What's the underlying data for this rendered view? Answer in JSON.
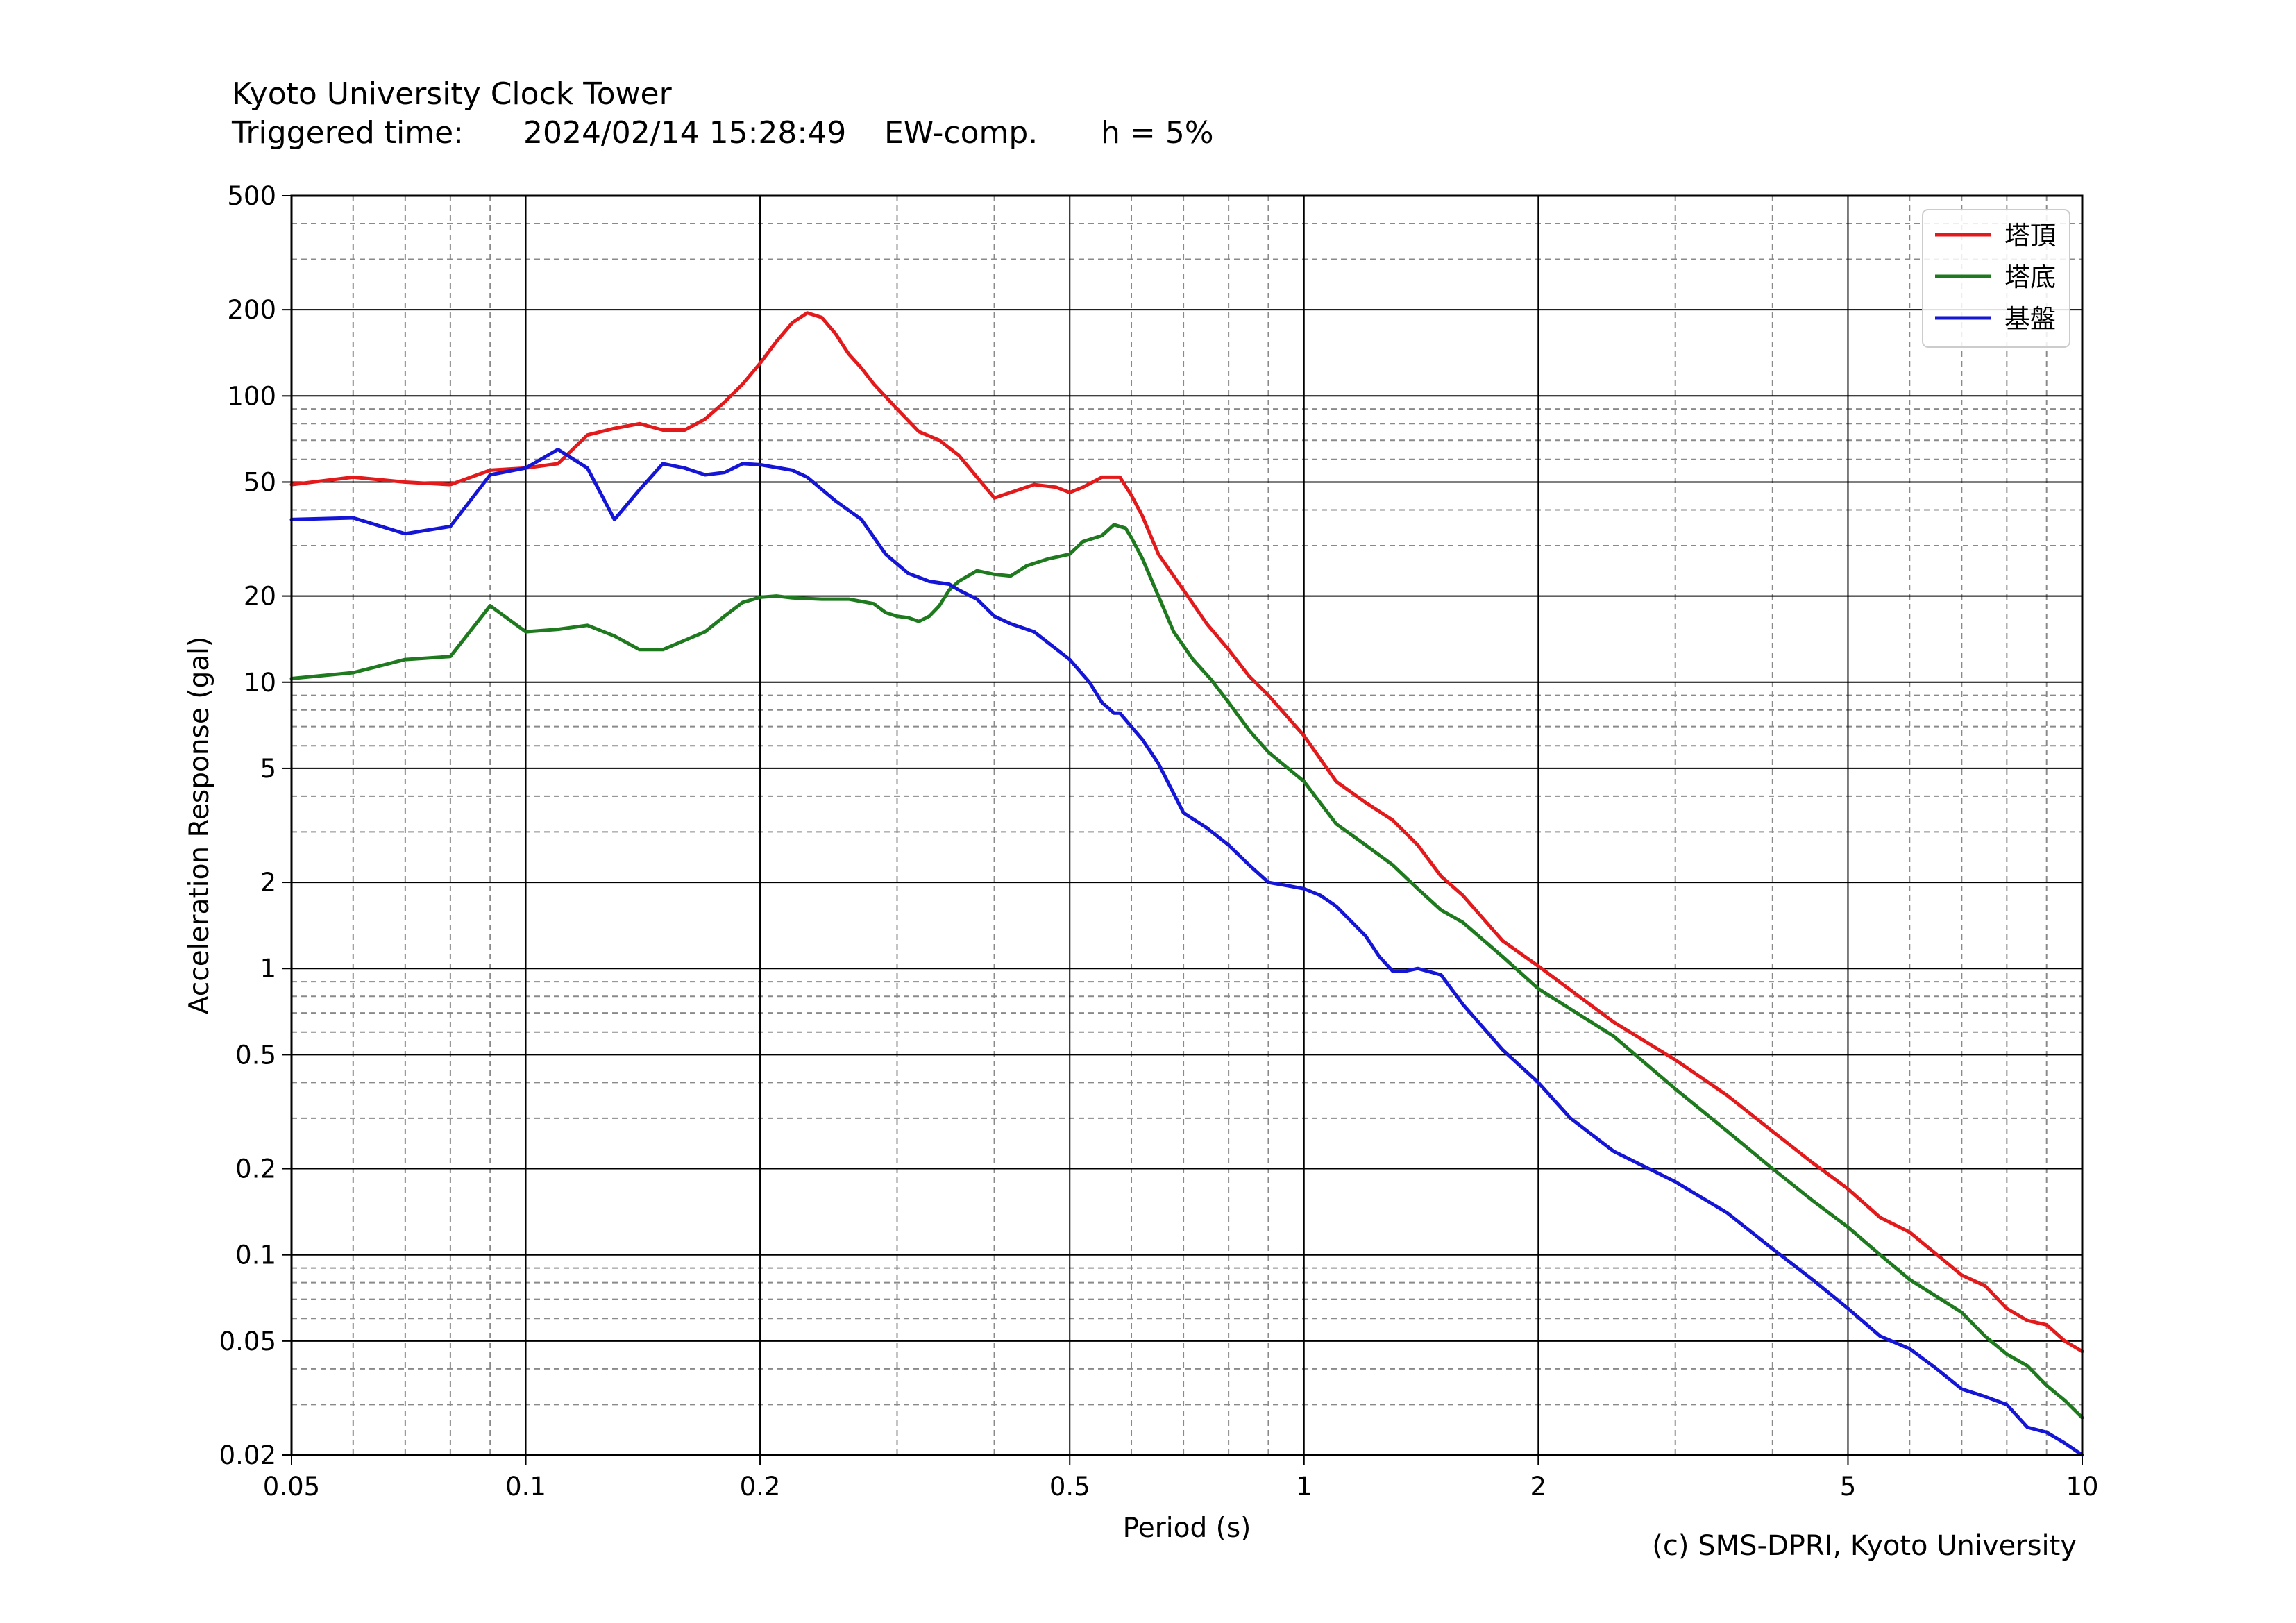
{
  "header": {
    "line1": "Kyoto University Clock Tower",
    "triggered_label": "Triggered time:",
    "triggered_time": "2024/02/14 15:28:49",
    "component": "EW-comp.",
    "damping": "h = 5%"
  },
  "copyright": "(c) SMS-DPRI, Kyoto University",
  "chart_data": {
    "type": "line",
    "xlabel": "Period (s)",
    "ylabel": "Acceleration Response (gal)",
    "xscale": "log",
    "yscale": "log",
    "xlim": [
      0.05,
      10
    ],
    "ylim": [
      0.02,
      500
    ],
    "grid": true,
    "legend_position": "top-right",
    "x_ticks": [
      {
        "value": 0.05,
        "label": "0.05"
      },
      {
        "value": 0.1,
        "label": "0.1"
      },
      {
        "value": 0.2,
        "label": "0.2"
      },
      {
        "value": 0.5,
        "label": "0.5"
      },
      {
        "value": 1,
        "label": "1"
      },
      {
        "value": 2,
        "label": "2"
      },
      {
        "value": 5,
        "label": "5"
      },
      {
        "value": 10,
        "label": "10"
      }
    ],
    "y_ticks": [
      {
        "value": 0.02,
        "label": "0.02"
      },
      {
        "value": 0.05,
        "label": "0.05"
      },
      {
        "value": 0.1,
        "label": "0.1"
      },
      {
        "value": 0.2,
        "label": "0.2"
      },
      {
        "value": 0.5,
        "label": "0.5"
      },
      {
        "value": 1,
        "label": "1"
      },
      {
        "value": 2,
        "label": "2"
      },
      {
        "value": 5,
        "label": "5"
      },
      {
        "value": 10,
        "label": "10"
      },
      {
        "value": 20,
        "label": "20"
      },
      {
        "value": 50,
        "label": "50"
      },
      {
        "value": 100,
        "label": "100"
      },
      {
        "value": 200,
        "label": "200"
      },
      {
        "value": 500,
        "label": "500"
      }
    ],
    "series": [
      {
        "name": "塔頂",
        "color": "#e31a1c",
        "points": [
          [
            0.05,
            49
          ],
          [
            0.06,
            52
          ],
          [
            0.07,
            50
          ],
          [
            0.08,
            49
          ],
          [
            0.09,
            55
          ],
          [
            0.1,
            56
          ],
          [
            0.11,
            58
          ],
          [
            0.12,
            73
          ],
          [
            0.13,
            77
          ],
          [
            0.14,
            80
          ],
          [
            0.15,
            76
          ],
          [
            0.16,
            76
          ],
          [
            0.17,
            83
          ],
          [
            0.18,
            95
          ],
          [
            0.19,
            110
          ],
          [
            0.2,
            130
          ],
          [
            0.21,
            155
          ],
          [
            0.22,
            180
          ],
          [
            0.23,
            195
          ],
          [
            0.24,
            188
          ],
          [
            0.25,
            165
          ],
          [
            0.26,
            140
          ],
          [
            0.27,
            125
          ],
          [
            0.28,
            110
          ],
          [
            0.3,
            90
          ],
          [
            0.32,
            75
          ],
          [
            0.34,
            70
          ],
          [
            0.36,
            62
          ],
          [
            0.38,
            52
          ],
          [
            0.4,
            44
          ],
          [
            0.42,
            46
          ],
          [
            0.45,
            49
          ],
          [
            0.48,
            48
          ],
          [
            0.5,
            46
          ],
          [
            0.52,
            48
          ],
          [
            0.55,
            52
          ],
          [
            0.58,
            52
          ],
          [
            0.6,
            45
          ],
          [
            0.62,
            38
          ],
          [
            0.65,
            28
          ],
          [
            0.7,
            21
          ],
          [
            0.75,
            16
          ],
          [
            0.8,
            13
          ],
          [
            0.85,
            10.5
          ],
          [
            0.9,
            9
          ],
          [
            1,
            6.5
          ],
          [
            1.1,
            4.5
          ],
          [
            1.2,
            3.8
          ],
          [
            1.3,
            3.3
          ],
          [
            1.4,
            2.7
          ],
          [
            1.5,
            2.1
          ],
          [
            1.6,
            1.8
          ],
          [
            1.8,
            1.25
          ],
          [
            2,
            1.02
          ],
          [
            2.5,
            0.65
          ],
          [
            3,
            0.48
          ],
          [
            3.5,
            0.36
          ],
          [
            4,
            0.27
          ],
          [
            4.5,
            0.21
          ],
          [
            5,
            0.17
          ],
          [
            5.5,
            0.135
          ],
          [
            6,
            0.12
          ],
          [
            7,
            0.085
          ],
          [
            7.5,
            0.078
          ],
          [
            8,
            0.065
          ],
          [
            8.5,
            0.059
          ],
          [
            9,
            0.057
          ],
          [
            9.5,
            0.05
          ],
          [
            10,
            0.046
          ]
        ]
      },
      {
        "name": "塔底",
        "color": "#1f7a1f",
        "points": [
          [
            0.05,
            10.3
          ],
          [
            0.06,
            10.8
          ],
          [
            0.07,
            12
          ],
          [
            0.08,
            12.3
          ],
          [
            0.09,
            18.5
          ],
          [
            0.1,
            15
          ],
          [
            0.11,
            15.3
          ],
          [
            0.12,
            15.8
          ],
          [
            0.13,
            14.5
          ],
          [
            0.14,
            13
          ],
          [
            0.15,
            13
          ],
          [
            0.16,
            14
          ],
          [
            0.17,
            15
          ],
          [
            0.18,
            17
          ],
          [
            0.19,
            19
          ],
          [
            0.2,
            19.8
          ],
          [
            0.21,
            20
          ],
          [
            0.22,
            19.7
          ],
          [
            0.24,
            19.5
          ],
          [
            0.26,
            19.5
          ],
          [
            0.28,
            18.8
          ],
          [
            0.29,
            17.5
          ],
          [
            0.3,
            17
          ],
          [
            0.31,
            16.8
          ],
          [
            0.32,
            16.3
          ],
          [
            0.33,
            17
          ],
          [
            0.34,
            18.5
          ],
          [
            0.35,
            21
          ],
          [
            0.36,
            22.5
          ],
          [
            0.38,
            24.5
          ],
          [
            0.4,
            23.8
          ],
          [
            0.42,
            23.5
          ],
          [
            0.44,
            25.5
          ],
          [
            0.47,
            27
          ],
          [
            0.5,
            28
          ],
          [
            0.52,
            31
          ],
          [
            0.54,
            32
          ],
          [
            0.55,
            32.5
          ],
          [
            0.57,
            35.5
          ],
          [
            0.59,
            34.5
          ],
          [
            0.6,
            32
          ],
          [
            0.62,
            27
          ],
          [
            0.65,
            20
          ],
          [
            0.68,
            15
          ],
          [
            0.72,
            12
          ],
          [
            0.76,
            10.2
          ],
          [
            0.8,
            8.5
          ],
          [
            0.85,
            6.8
          ],
          [
            0.9,
            5.7
          ],
          [
            1,
            4.5
          ],
          [
            1.1,
            3.2
          ],
          [
            1.2,
            2.7
          ],
          [
            1.3,
            2.3
          ],
          [
            1.4,
            1.9
          ],
          [
            1.5,
            1.6
          ],
          [
            1.6,
            1.45
          ],
          [
            1.8,
            1.1
          ],
          [
            2,
            0.85
          ],
          [
            2.5,
            0.58
          ],
          [
            3,
            0.38
          ],
          [
            3.5,
            0.27
          ],
          [
            4,
            0.2
          ],
          [
            4.5,
            0.155
          ],
          [
            5,
            0.125
          ],
          [
            5.5,
            0.1
          ],
          [
            6,
            0.082
          ],
          [
            7,
            0.063
          ],
          [
            7.5,
            0.052
          ],
          [
            8,
            0.045
          ],
          [
            8.5,
            0.041
          ],
          [
            9,
            0.035
          ],
          [
            9.5,
            0.031
          ],
          [
            10,
            0.027
          ]
        ]
      },
      {
        "name": "基盤",
        "color": "#1515d6",
        "points": [
          [
            0.05,
            37
          ],
          [
            0.06,
            37.5
          ],
          [
            0.07,
            33
          ],
          [
            0.08,
            35
          ],
          [
            0.09,
            53
          ],
          [
            0.1,
            56
          ],
          [
            0.11,
            65
          ],
          [
            0.12,
            56
          ],
          [
            0.13,
            37
          ],
          [
            0.14,
            47
          ],
          [
            0.15,
            58
          ],
          [
            0.16,
            56
          ],
          [
            0.17,
            53
          ],
          [
            0.18,
            54
          ],
          [
            0.19,
            58
          ],
          [
            0.2,
            57.5
          ],
          [
            0.22,
            55
          ],
          [
            0.23,
            52
          ],
          [
            0.25,
            43
          ],
          [
            0.27,
            37
          ],
          [
            0.29,
            28
          ],
          [
            0.31,
            24
          ],
          [
            0.33,
            22.5
          ],
          [
            0.35,
            22
          ],
          [
            0.36,
            21
          ],
          [
            0.38,
            19.5
          ],
          [
            0.4,
            17
          ],
          [
            0.42,
            16
          ],
          [
            0.45,
            15
          ],
          [
            0.5,
            12
          ],
          [
            0.53,
            10
          ],
          [
            0.55,
            8.5
          ],
          [
            0.57,
            7.8
          ],
          [
            0.58,
            7.8
          ],
          [
            0.6,
            7
          ],
          [
            0.62,
            6.3
          ],
          [
            0.65,
            5.2
          ],
          [
            0.7,
            3.5
          ],
          [
            0.75,
            3.1
          ],
          [
            0.8,
            2.7
          ],
          [
            0.85,
            2.3
          ],
          [
            0.9,
            2
          ],
          [
            0.95,
            1.95
          ],
          [
            1,
            1.9
          ],
          [
            1.05,
            1.8
          ],
          [
            1.1,
            1.65
          ],
          [
            1.2,
            1.3
          ],
          [
            1.25,
            1.1
          ],
          [
            1.3,
            0.98
          ],
          [
            1.35,
            0.98
          ],
          [
            1.4,
            1
          ],
          [
            1.5,
            0.95
          ],
          [
            1.6,
            0.75
          ],
          [
            1.8,
            0.52
          ],
          [
            2,
            0.4
          ],
          [
            2.2,
            0.3
          ],
          [
            2.5,
            0.23
          ],
          [
            3,
            0.18
          ],
          [
            3.5,
            0.14
          ],
          [
            4,
            0.105
          ],
          [
            4.5,
            0.082
          ],
          [
            5,
            0.065
          ],
          [
            5.5,
            0.052
          ],
          [
            6,
            0.047
          ],
          [
            6.5,
            0.04
          ],
          [
            7,
            0.034
          ],
          [
            7.5,
            0.032
          ],
          [
            8,
            0.03
          ],
          [
            8.5,
            0.025
          ],
          [
            9,
            0.024
          ],
          [
            9.5,
            0.022
          ],
          [
            10,
            0.02
          ]
        ]
      }
    ]
  }
}
